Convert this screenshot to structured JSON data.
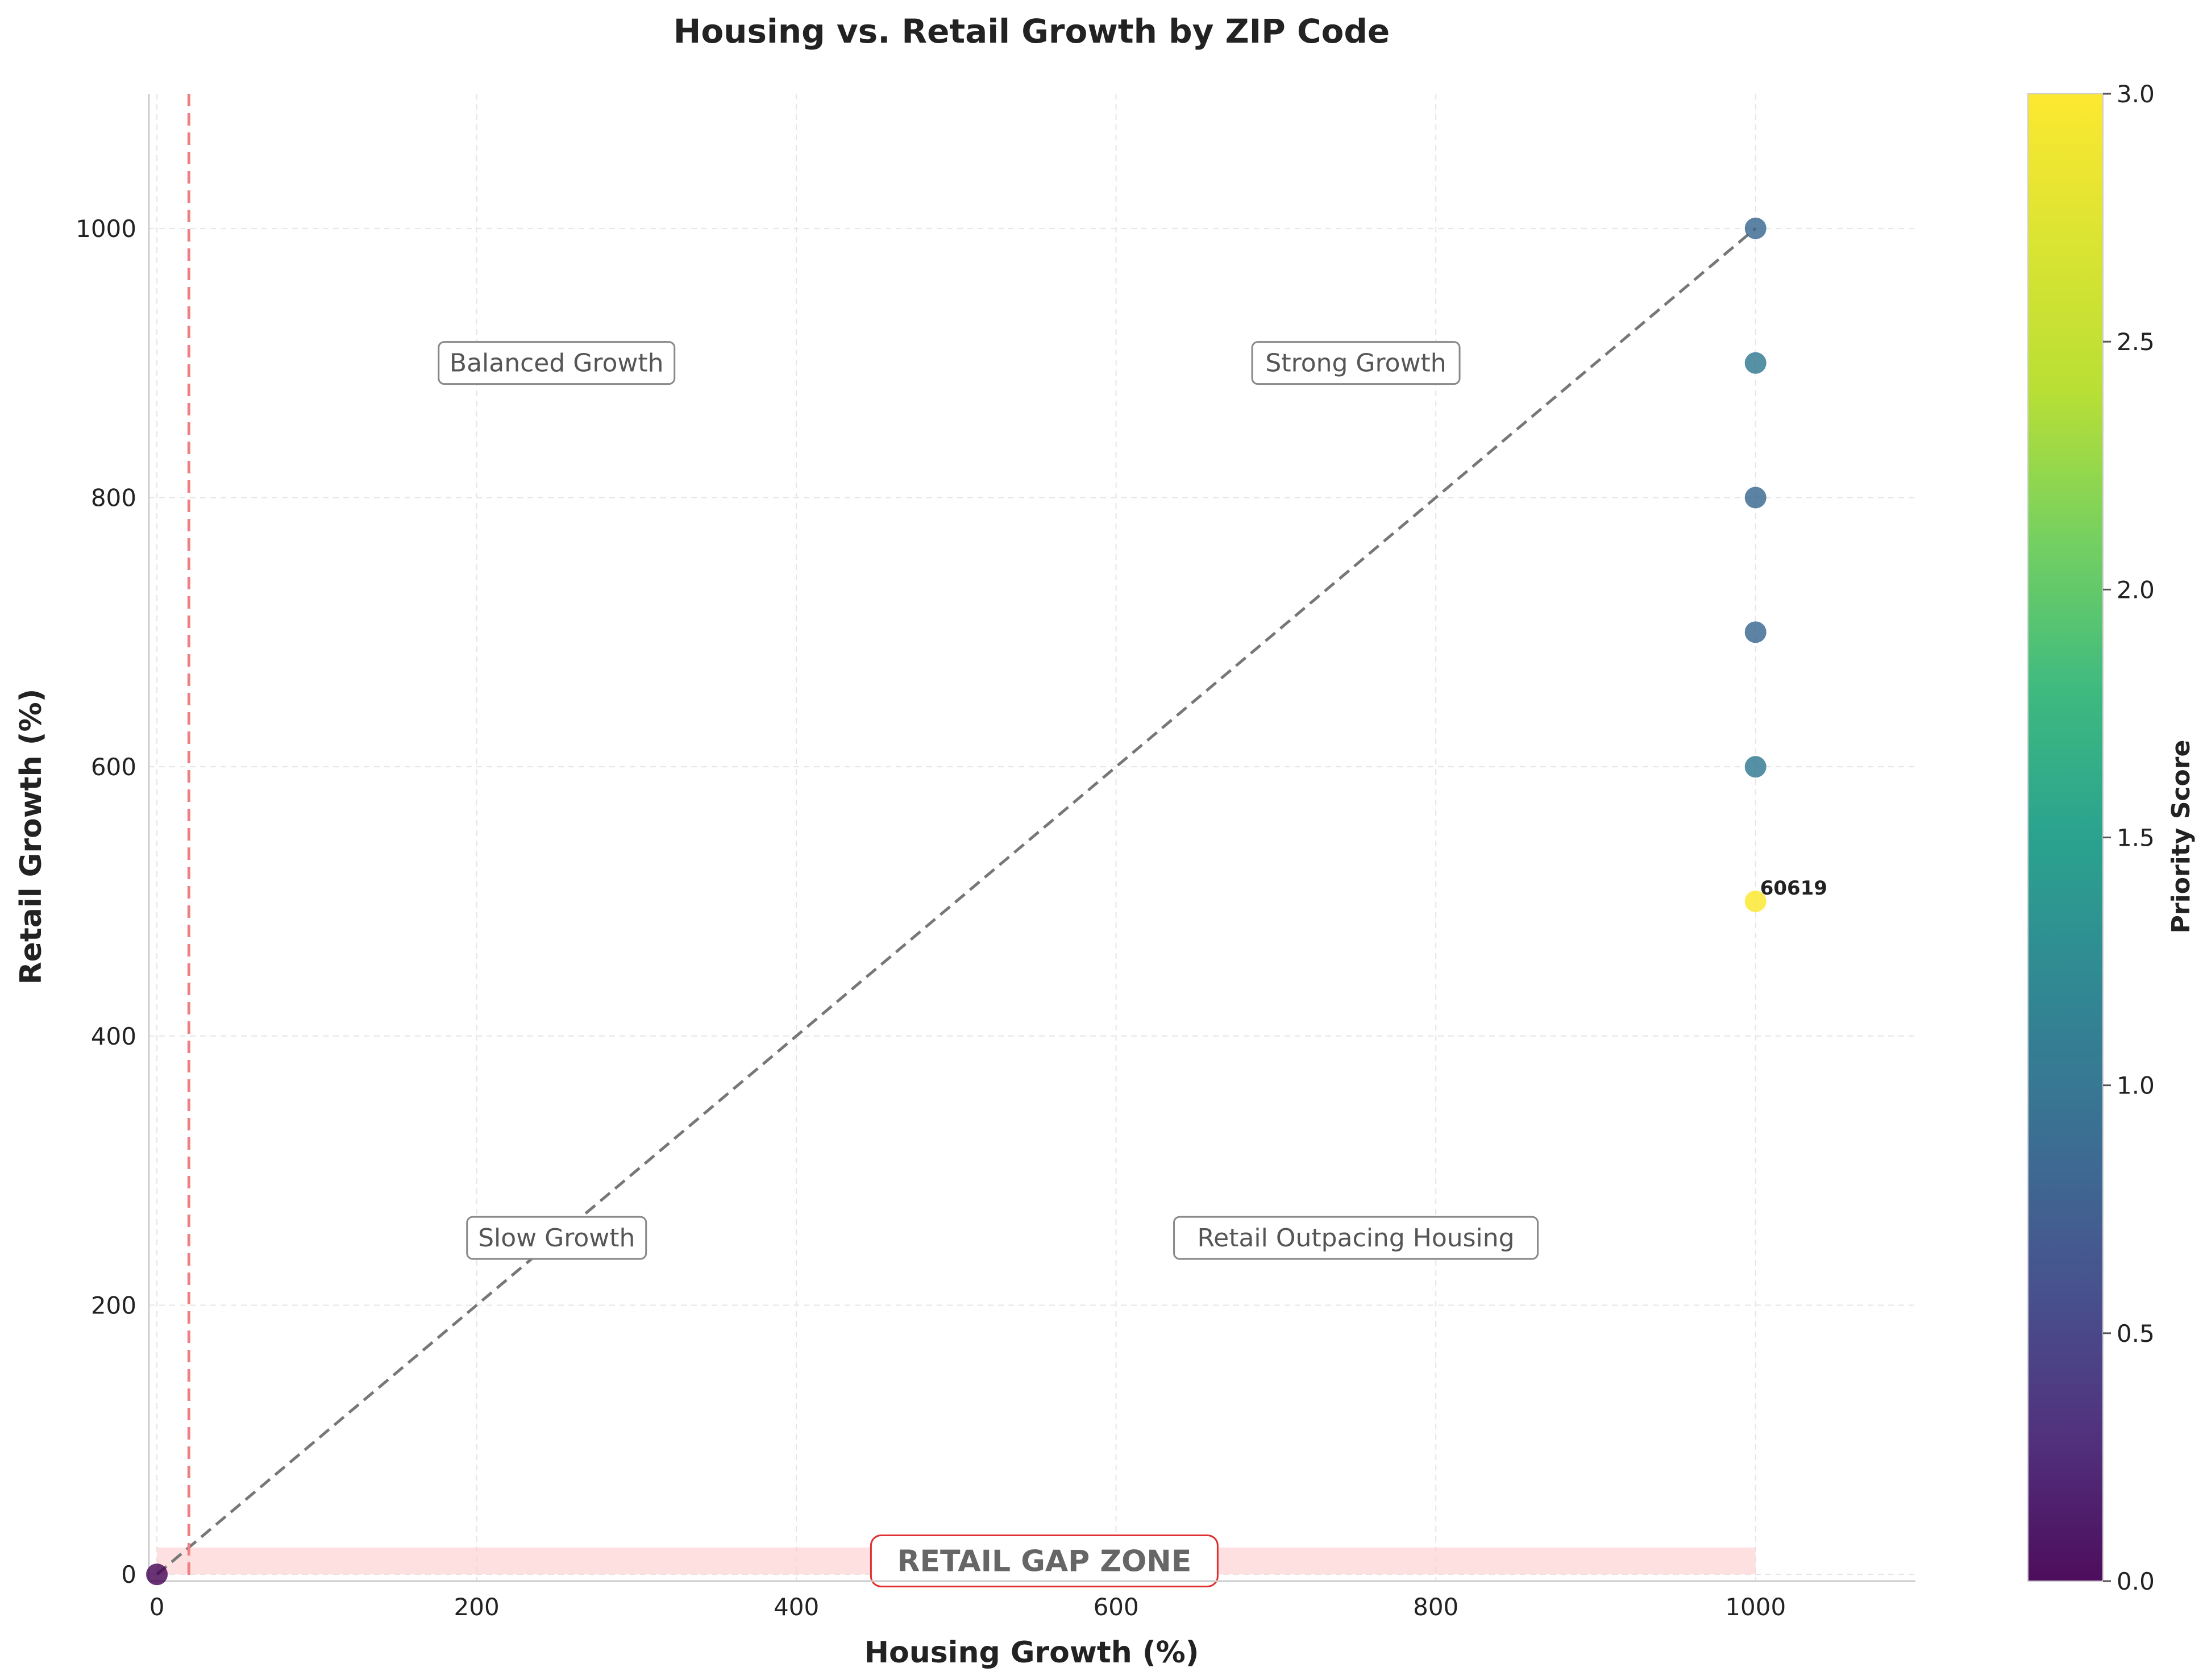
{
  "chart_data": {
    "type": "scatter",
    "title": "Housing vs. Retail Growth by ZIP Code",
    "xlabel": "Housing Growth (%)",
    "ylabel": "Retail Growth (%)",
    "xlim": [
      -5,
      1100
    ],
    "ylim": [
      -5,
      1100
    ],
    "xticks": [
      0,
      200,
      400,
      600,
      800,
      1000
    ],
    "yticks": [
      0,
      200,
      400,
      600,
      800,
      1000
    ],
    "grid": true,
    "colorbar": {
      "label": "Priority Score",
      "range": [
        0,
        3
      ],
      "ticks": [
        "0.0",
        "0.5",
        "1.0",
        "1.5",
        "2.0",
        "2.5",
        "3.0"
      ],
      "colormap": "viridis"
    },
    "points": [
      {
        "x": 0,
        "y": 0,
        "priority": 0.0
      },
      {
        "x": 1000,
        "y": 1000,
        "priority": 0.95
      },
      {
        "x": 1000,
        "y": 900,
        "priority": 1.15
      },
      {
        "x": 1000,
        "y": 800,
        "priority": 0.95
      },
      {
        "x": 1000,
        "y": 700,
        "priority": 0.95
      },
      {
        "x": 1000,
        "y": 600,
        "priority": 1.15
      },
      {
        "x": 1000,
        "y": 500,
        "priority": 3.0
      }
    ],
    "point_labels": [
      {
        "text": "60619",
        "x": 1000,
        "y": 500
      }
    ],
    "reference_lines": [
      {
        "kind": "diagonal",
        "from": [
          0,
          0
        ],
        "to": [
          1000,
          1000
        ],
        "color": "#777777",
        "style": "dashed"
      },
      {
        "kind": "vertical",
        "x": 20,
        "color": "#f08080",
        "style": "dashed"
      }
    ],
    "gap_zone": {
      "label": "RETAIL GAP ZONE",
      "x": [
        0,
        1000
      ],
      "y": [
        0,
        20
      ],
      "color": "#ffcccc"
    },
    "quadrant_labels": [
      {
        "text": "Balanced Growth",
        "x": 250,
        "y": 900
      },
      {
        "text": "Strong Growth",
        "x": 750,
        "y": 900
      },
      {
        "text": "Slow Growth",
        "x": 250,
        "y": 250
      },
      {
        "text": "Retail Outpacing Housing",
        "x": 750,
        "y": 250
      }
    ],
    "colors": {
      "accent_red": "#e03030",
      "axis": "#cccccc",
      "grid": "#e5e5e5",
      "text": "#222222"
    }
  }
}
